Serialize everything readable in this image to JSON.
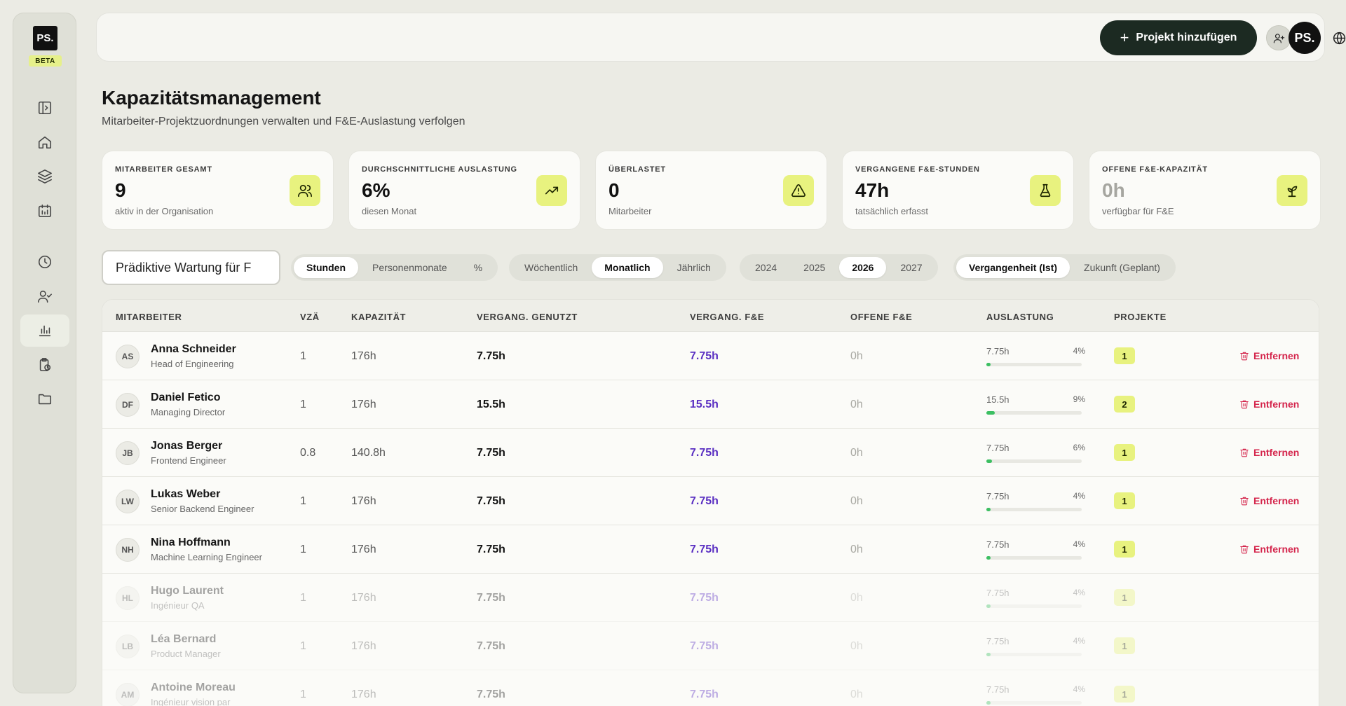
{
  "sidebar": {
    "logo": "PS.",
    "badge": "BETA",
    "items": [
      {
        "icon": "sidebar-toggle-icon"
      },
      {
        "icon": "home-icon"
      },
      {
        "icon": "layers-icon"
      },
      {
        "icon": "calendar-icon"
      },
      {
        "icon": "clock-icon"
      },
      {
        "icon": "user-check-icon"
      },
      {
        "icon": "bar-chart-icon",
        "active": true
      },
      {
        "icon": "clipboard-clock-icon"
      },
      {
        "icon": "folder-icon"
      }
    ]
  },
  "topbar": {
    "add_project_label": "Projekt hinzufügen",
    "avatar_initials": "PS."
  },
  "page": {
    "title": "Kapazitätsmanagement",
    "subtitle": "Mitarbeiter-Projektzuordnungen verwalten und F&E-Auslastung verfolgen"
  },
  "stats": [
    {
      "label": "MITARBEITER GESAMT",
      "value": "9",
      "desc": "aktiv in der Organisation",
      "icon": "users-icon"
    },
    {
      "label": "DURCHSCHNITTLICHE AUSLASTUNG",
      "value": "6%",
      "desc": "diesen Monat",
      "icon": "trending-up-icon"
    },
    {
      "label": "ÜBERLASTET",
      "value": "0",
      "desc": "Mitarbeiter",
      "icon": "alert-triangle-icon"
    },
    {
      "label": "VERGANGENE F&E-STUNDEN",
      "value": "47h",
      "desc": "tatsächlich erfasst",
      "icon": "flask-icon"
    },
    {
      "label": "OFFENE F&E-KAPAZITÄT",
      "value": "0h",
      "desc": "verfügbar für F&E",
      "icon": "sprout-icon"
    }
  ],
  "filters": {
    "project_value": "Prädiktive Wartung für F",
    "unit_options": [
      "Stunden",
      "Personenmonate",
      "%"
    ],
    "period_options": [
      "Wöchentlich",
      "Monatlich",
      "Jährlich"
    ],
    "year_options": [
      "2024",
      "2025",
      "2026",
      "2027"
    ],
    "time_options": [
      "Vergangenheit (Ist)",
      "Zukunft (Geplant)"
    ]
  },
  "table": {
    "headers": {
      "employee": "MITARBEITER",
      "fte": "VZÄ",
      "capacity": "KAPAZITÄT",
      "past_used": "VERGANG. GENUTZT",
      "past_rd": "VERGANG. F&E",
      "open_rd": "OFFENE F&E",
      "utilization": "AUSLASTUNG",
      "projects": "PROJEKTE"
    },
    "remove_label": "Entfernen",
    "rows": [
      {
        "initials": "AS",
        "name": "Anna Schneider",
        "role": "Head of Engineering",
        "fte": "1",
        "capacity": "176h",
        "past_used": "7.75h",
        "past_rd": "7.75h",
        "open_rd": "0h",
        "util_hours": "7.75h",
        "util_pct": "4%",
        "util_value": 0.04,
        "projects": "1"
      },
      {
        "initials": "DF",
        "name": "Daniel Fetico",
        "role": "Managing Director",
        "fte": "1",
        "capacity": "176h",
        "past_used": "15.5h",
        "past_rd": "15.5h",
        "open_rd": "0h",
        "util_hours": "15.5h",
        "util_pct": "9%",
        "util_value": 0.09,
        "projects": "2"
      },
      {
        "initials": "JB",
        "name": "Jonas Berger",
        "role": "Frontend Engineer",
        "fte": "0.8",
        "capacity": "140.8h",
        "past_used": "7.75h",
        "past_rd": "7.75h",
        "open_rd": "0h",
        "util_hours": "7.75h",
        "util_pct": "6%",
        "util_value": 0.06,
        "projects": "1"
      },
      {
        "initials": "LW",
        "name": "Lukas Weber",
        "role": "Senior Backend Engineer",
        "fte": "1",
        "capacity": "176h",
        "past_used": "7.75h",
        "past_rd": "7.75h",
        "open_rd": "0h",
        "util_hours": "7.75h",
        "util_pct": "4%",
        "util_value": 0.04,
        "projects": "1"
      },
      {
        "initials": "NH",
        "name": "Nina Hoffmann",
        "role": "Machine Learning Engineer",
        "fte": "1",
        "capacity": "176h",
        "past_used": "7.75h",
        "past_rd": "7.75h",
        "open_rd": "0h",
        "util_hours": "7.75h",
        "util_pct": "4%",
        "util_value": 0.04,
        "projects": "1"
      },
      {
        "initials": "HL",
        "name": "Hugo Laurent",
        "role": "Ingénieur QA",
        "fte": "1",
        "capacity": "176h",
        "past_used": "7.75h",
        "past_rd": "7.75h",
        "open_rd": "0h",
        "util_hours": "7.75h",
        "util_pct": "4%",
        "util_value": 0.04,
        "projects": "1",
        "dim": true
      },
      {
        "initials": "LB",
        "name": "Léa Bernard",
        "role": "Product Manager",
        "fte": "1",
        "capacity": "176h",
        "past_used": "7.75h",
        "past_rd": "7.75h",
        "open_rd": "0h",
        "util_hours": "7.75h",
        "util_pct": "4%",
        "util_value": 0.04,
        "projects": "1",
        "dim": true
      },
      {
        "initials": "AM",
        "name": "Antoine Moreau",
        "role": "Ingénieur vision par",
        "fte": "1",
        "capacity": "176h",
        "past_used": "7.75h",
        "past_rd": "7.75h",
        "open_rd": "0h",
        "util_hours": "7.75h",
        "util_pct": "4%",
        "util_value": 0.04,
        "projects": "1",
        "dim": true
      }
    ]
  }
}
